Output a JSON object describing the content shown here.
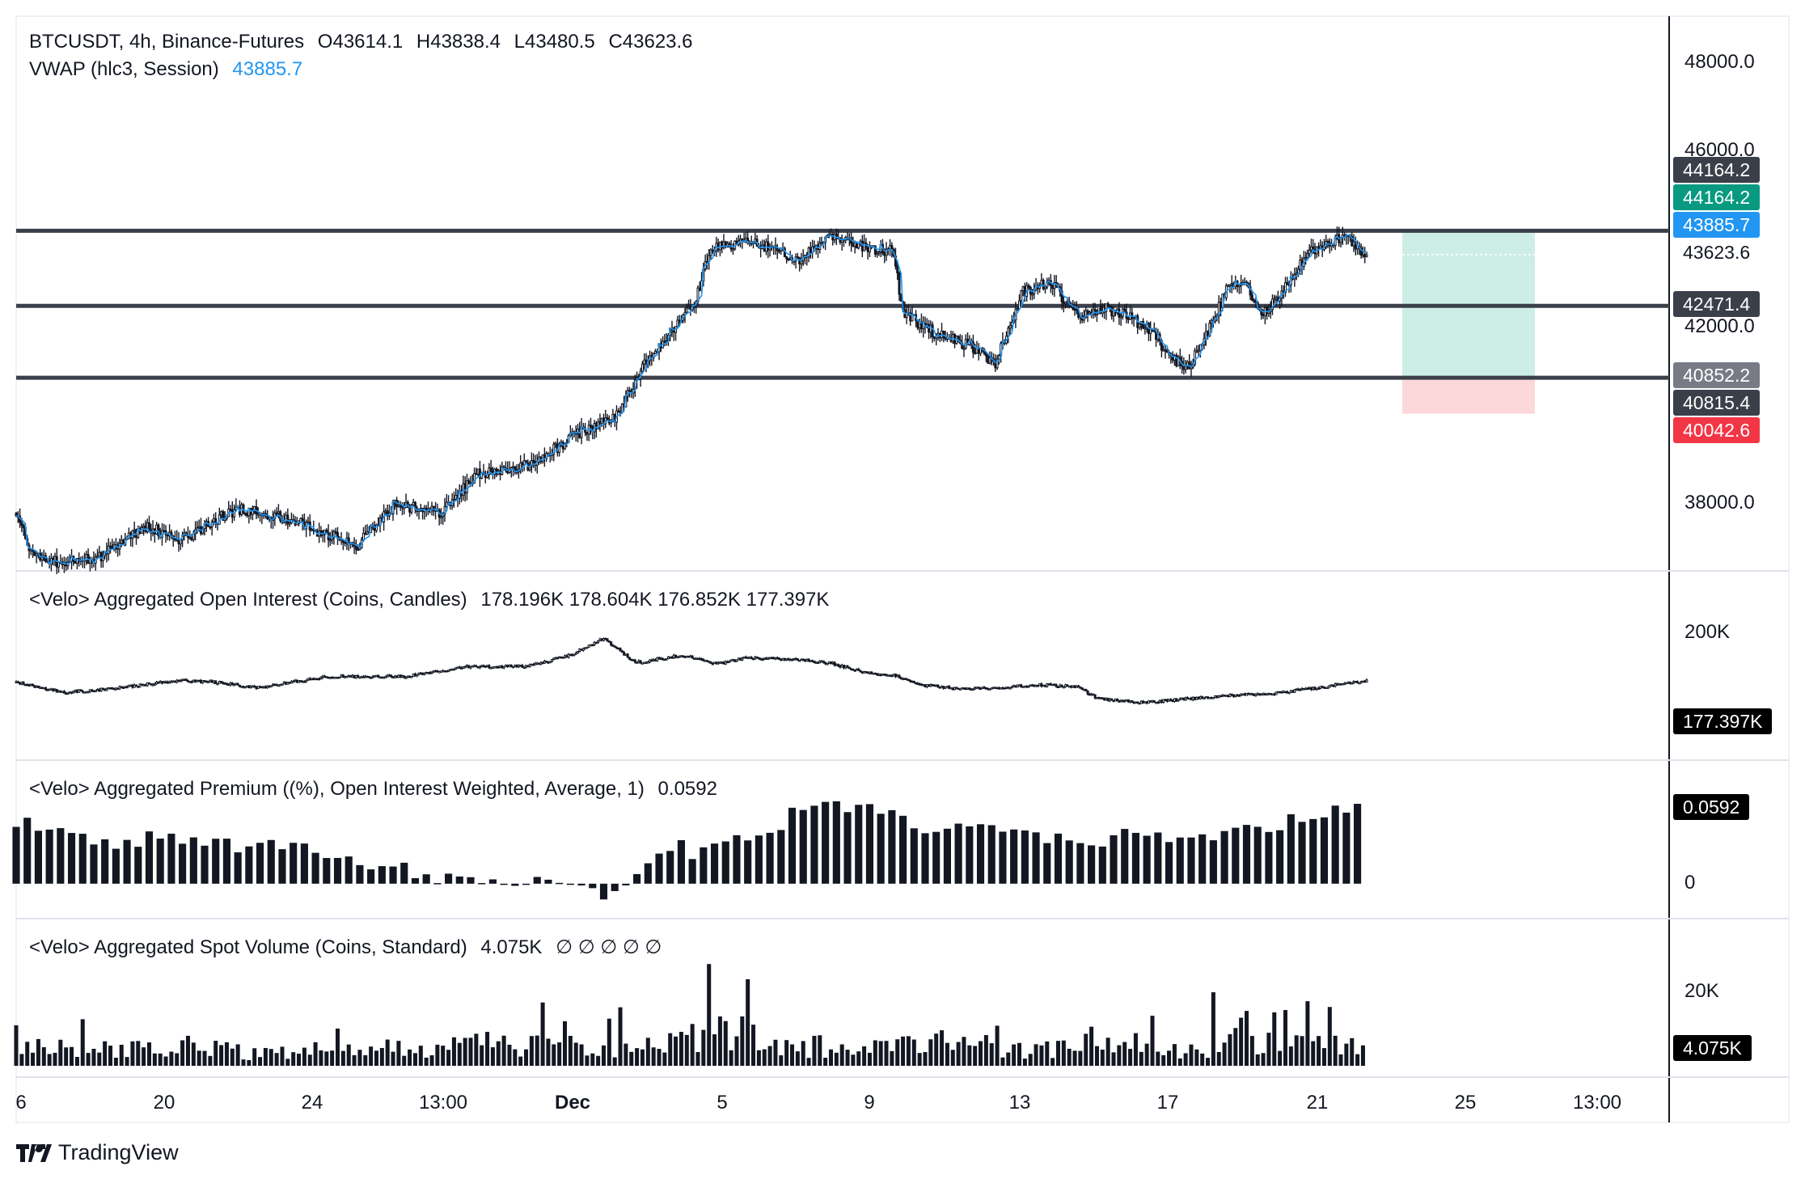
{
  "main_legend": {
    "symbol": "BTCUSDT, 4h, Binance-Futures",
    "open": "O43614.1",
    "high": "H43838.4",
    "low": "L43480.5",
    "close": "C43623.6",
    "indicator": "VWAP (hlc3, Session)",
    "indicator_value": "43885.7"
  },
  "oi_legend": {
    "title": "<Velo> Aggregated Open Interest (Coins, Candles)",
    "values": "178.196K 178.604K 176.852K 177.397K"
  },
  "premium_legend": {
    "title": "<Velo> Aggregated Premium ((%), Open Interest Weighted, Average, 1)",
    "value": "0.0592"
  },
  "volume_legend": {
    "title": "<Velo> Aggregated Spot Volume (Coins, Standard)",
    "value": "4.075K",
    "placeholders": "∅ ∅ ∅ ∅ ∅"
  },
  "price_axis": {
    "ticks": [
      "48000.0",
      "46000.0",
      "42000.0",
      "38000.0"
    ],
    "tags": [
      {
        "text": "44164.2",
        "color": "#3b3f4a"
      },
      {
        "text": "44164.2",
        "color": "#089981"
      },
      {
        "text": "43885.7",
        "color": "#2196f3"
      },
      {
        "text": "43623.6",
        "color": "#ffffff"
      },
      {
        "text": "42471.4",
        "color": "#3b3f4a"
      },
      {
        "text": "40852.2",
        "color": "#787b86"
      },
      {
        "text": "40815.4",
        "color": "#3b3f4a"
      },
      {
        "text": "40042.6",
        "color": "#f23645"
      }
    ]
  },
  "oi_axis": {
    "ticks": [
      "200K"
    ],
    "tag": "177.397K"
  },
  "premium_axis": {
    "ticks": [
      "0"
    ],
    "tag": "0.0592"
  },
  "volume_axis": {
    "ticks": [
      "20K"
    ],
    "tag": "4.075K"
  },
  "time_axis": {
    "ticks": [
      "6",
      "20",
      "24",
      "13:00",
      "Dec",
      "5",
      "9",
      "13",
      "17",
      "21",
      "25",
      "13:00"
    ]
  },
  "brand": "TradingView",
  "colors": {
    "candle": "#131722",
    "vwap": "#2196f3",
    "level_line": "#3b3f4a",
    "target_zone": "#cdeee6",
    "stop_zone": "#fcd8db",
    "separator": "#e0e3eb"
  },
  "chart_data": [
    {
      "type": "candlestick",
      "symbol": "BTCUSDT",
      "timeframe": "4h",
      "ylim": [
        36500,
        49000
      ],
      "horizontal_levels": [
        44164.2,
        42471.4,
        40852.2
      ],
      "position_tool": {
        "entry": 40852.2,
        "target": 44164.2,
        "stop": 40042.6
      },
      "overlay": "VWAP (hlc3, Session)",
      "anchors": [
        [
          0,
          37800
        ],
        [
          8,
          36900
        ],
        [
          20,
          36700
        ],
        [
          45,
          36800
        ],
        [
          70,
          37500
        ],
        [
          90,
          37200
        ],
        [
          105,
          37600
        ],
        [
          120,
          37900
        ],
        [
          145,
          37700
        ],
        [
          170,
          37300
        ],
        [
          185,
          37100
        ],
        [
          205,
          38000
        ],
        [
          230,
          37800
        ],
        [
          250,
          38700
        ],
        [
          280,
          38900
        ],
        [
          300,
          39500
        ],
        [
          325,
          40000
        ],
        [
          340,
          41200
        ],
        [
          355,
          41900
        ],
        [
          368,
          42600
        ],
        [
          375,
          43700
        ],
        [
          390,
          43900
        ],
        [
          410,
          43800
        ],
        [
          425,
          43500
        ],
        [
          440,
          44100
        ],
        [
          460,
          43800
        ],
        [
          475,
          43700
        ],
        [
          480,
          42300
        ],
        [
          500,
          41800
        ],
        [
          515,
          41600
        ],
        [
          530,
          41200
        ],
        [
          545,
          42800
        ],
        [
          560,
          43000
        ],
        [
          575,
          42200
        ],
        [
          590,
          42400
        ],
        [
          600,
          42300
        ],
        [
          615,
          41900
        ],
        [
          625,
          41300
        ],
        [
          635,
          41100
        ],
        [
          645,
          41900
        ],
        [
          655,
          42800
        ],
        [
          665,
          43000
        ],
        [
          675,
          42300
        ],
        [
          685,
          42800
        ],
        [
          700,
          43700
        ],
        [
          710,
          43900
        ],
        [
          720,
          44000
        ],
        [
          731,
          43623.6
        ]
      ]
    },
    {
      "type": "candlestick",
      "name": "Aggregated Open Interest",
      "ylim": [
        120000,
        240000
      ],
      "anchors": [
        [
          0,
          176000
        ],
        [
          25,
          168000
        ],
        [
          50,
          171000
        ],
        [
          90,
          178000
        ],
        [
          110,
          176000
        ],
        [
          130,
          172000
        ],
        [
          170,
          181000
        ],
        [
          210,
          181000
        ],
        [
          245,
          189000
        ],
        [
          275,
          189000
        ],
        [
          300,
          198000
        ],
        [
          318,
          212000
        ],
        [
          335,
          192000
        ],
        [
          360,
          198000
        ],
        [
          380,
          191000
        ],
        [
          395,
          196000
        ],
        [
          420,
          195000
        ],
        [
          440,
          192000
        ],
        [
          460,
          184000
        ],
        [
          475,
          182000
        ],
        [
          490,
          174000
        ],
        [
          510,
          171000
        ],
        [
          530,
          172000
        ],
        [
          555,
          174000
        ],
        [
          575,
          173000
        ],
        [
          585,
          163000
        ],
        [
          610,
          160000
        ],
        [
          635,
          163000
        ],
        [
          660,
          166000
        ],
        [
          680,
          167000
        ],
        [
          700,
          171000
        ],
        [
          715,
          174000
        ],
        [
          731,
          177397
        ]
      ]
    },
    {
      "type": "bar",
      "name": "Aggregated Premium",
      "ylim": [
        -0.02,
        0.08
      ],
      "anchors": [
        [
          0,
          0.048
        ],
        [
          25,
          0.038
        ],
        [
          50,
          0.03
        ],
        [
          80,
          0.036
        ],
        [
          110,
          0.028
        ],
        [
          135,
          0.03
        ],
        [
          170,
          0.022
        ],
        [
          200,
          0.012
        ],
        [
          230,
          0.006
        ],
        [
          260,
          0.004
        ],
        [
          290,
          0.001
        ],
        [
          310,
          -0.006
        ],
        [
          320,
          -0.011
        ],
        [
          335,
          0.004
        ],
        [
          355,
          0.03
        ],
        [
          370,
          0.022
        ],
        [
          385,
          0.03
        ],
        [
          410,
          0.041
        ],
        [
          425,
          0.056
        ],
        [
          440,
          0.058
        ],
        [
          465,
          0.055
        ],
        [
          480,
          0.045
        ],
        [
          500,
          0.04
        ],
        [
          520,
          0.043
        ],
        [
          540,
          0.038
        ],
        [
          560,
          0.033
        ],
        [
          580,
          0.029
        ],
        [
          605,
          0.038
        ],
        [
          625,
          0.034
        ],
        [
          645,
          0.036
        ],
        [
          665,
          0.042
        ],
        [
          685,
          0.045
        ],
        [
          700,
          0.049
        ],
        [
          715,
          0.058
        ],
        [
          731,
          0.0592
        ]
      ]
    },
    {
      "type": "bar",
      "name": "Aggregated Spot Volume",
      "ylim": [
        0,
        30000
      ],
      "anchors": [
        [
          0,
          7000
        ],
        [
          40,
          4000
        ],
        [
          90,
          6000
        ],
        [
          130,
          3000
        ],
        [
          175,
          6000
        ],
        [
          220,
          3500
        ],
        [
          255,
          6500
        ],
        [
          300,
          4500
        ],
        [
          340,
          4500
        ],
        [
          365,
          8500
        ],
        [
          385,
          11000
        ],
        [
          400,
          9000
        ],
        [
          425,
          5500
        ],
        [
          455,
          4500
        ],
        [
          480,
          5000
        ],
        [
          500,
          8000
        ],
        [
          520,
          5200
        ],
        [
          545,
          4000
        ],
        [
          575,
          6000
        ],
        [
          600,
          4500
        ],
        [
          625,
          4200
        ],
        [
          645,
          5500
        ],
        [
          670,
          7000
        ],
        [
          690,
          5500
        ],
        [
          700,
          6000
        ],
        [
          715,
          6500
        ],
        [
          731,
          4075
        ]
      ]
    }
  ]
}
